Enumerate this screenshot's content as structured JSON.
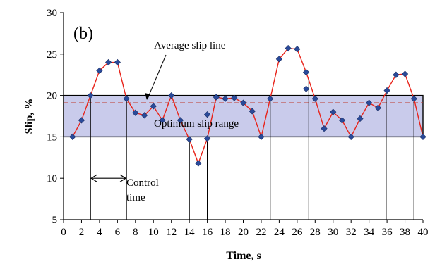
{
  "chart_data": {
    "type": "line",
    "panel_label": "(b)",
    "xlabel": "Time, s",
    "ylabel": "Slip, %",
    "xlim": [
      0,
      40
    ],
    "ylim": [
      5,
      30
    ],
    "x_ticks": [
      "0",
      "2",
      "4",
      "6",
      "8",
      "10",
      "12",
      "14",
      "16",
      "18",
      "20",
      "22",
      "24",
      "26",
      "28",
      "30",
      "32",
      "34",
      "36",
      "38",
      "40"
    ],
    "y_ticks": [
      "5",
      "10",
      "15",
      "20",
      "25",
      "30"
    ],
    "grid": false,
    "legend": "none",
    "series": [
      {
        "color": "#e8231a",
        "marker_color": "#2a4a9a",
        "x": [
          1,
          2,
          3,
          4,
          5,
          6,
          7,
          8,
          9,
          10,
          11,
          12,
          13,
          14,
          15,
          16,
          17,
          18,
          19,
          20,
          21,
          22,
          23,
          24,
          25,
          26,
          27,
          28,
          29,
          30,
          31,
          32,
          33,
          34,
          35,
          36,
          37,
          38,
          39,
          40
        ],
        "y": [
          15,
          17,
          20,
          23,
          24,
          24,
          19.6,
          17.9,
          17.6,
          18.7,
          17,
          20,
          17,
          14.7,
          11.8,
          14.8,
          19.8,
          19.6,
          19.7,
          19.1,
          18.1,
          15,
          19.6,
          24.4,
          25.7,
          25.6,
          22.8,
          19.6,
          16,
          18,
          17,
          15,
          17.2,
          19.1,
          18.5,
          20.6,
          22.5,
          22.6,
          19.6,
          15
        ]
      }
    ],
    "extra_points": [
      [
        16,
        17.7
      ],
      [
        27,
        20.8
      ]
    ],
    "optimum_range": {
      "label": "Optimum slip range",
      "y_min": 15,
      "y_max": 20,
      "color": "#c9cbeb"
    },
    "average_line": {
      "label": "Average slip line",
      "y": 19.1,
      "color": "#c0392b"
    },
    "control_lines_x": [
      3,
      7,
      14,
      16,
      23,
      27.3,
      35.9,
      39
    ],
    "control_time": {
      "label_line1": "Control",
      "label_line2": "time",
      "x_from": 3,
      "x_to": 7,
      "y": 10
    }
  }
}
